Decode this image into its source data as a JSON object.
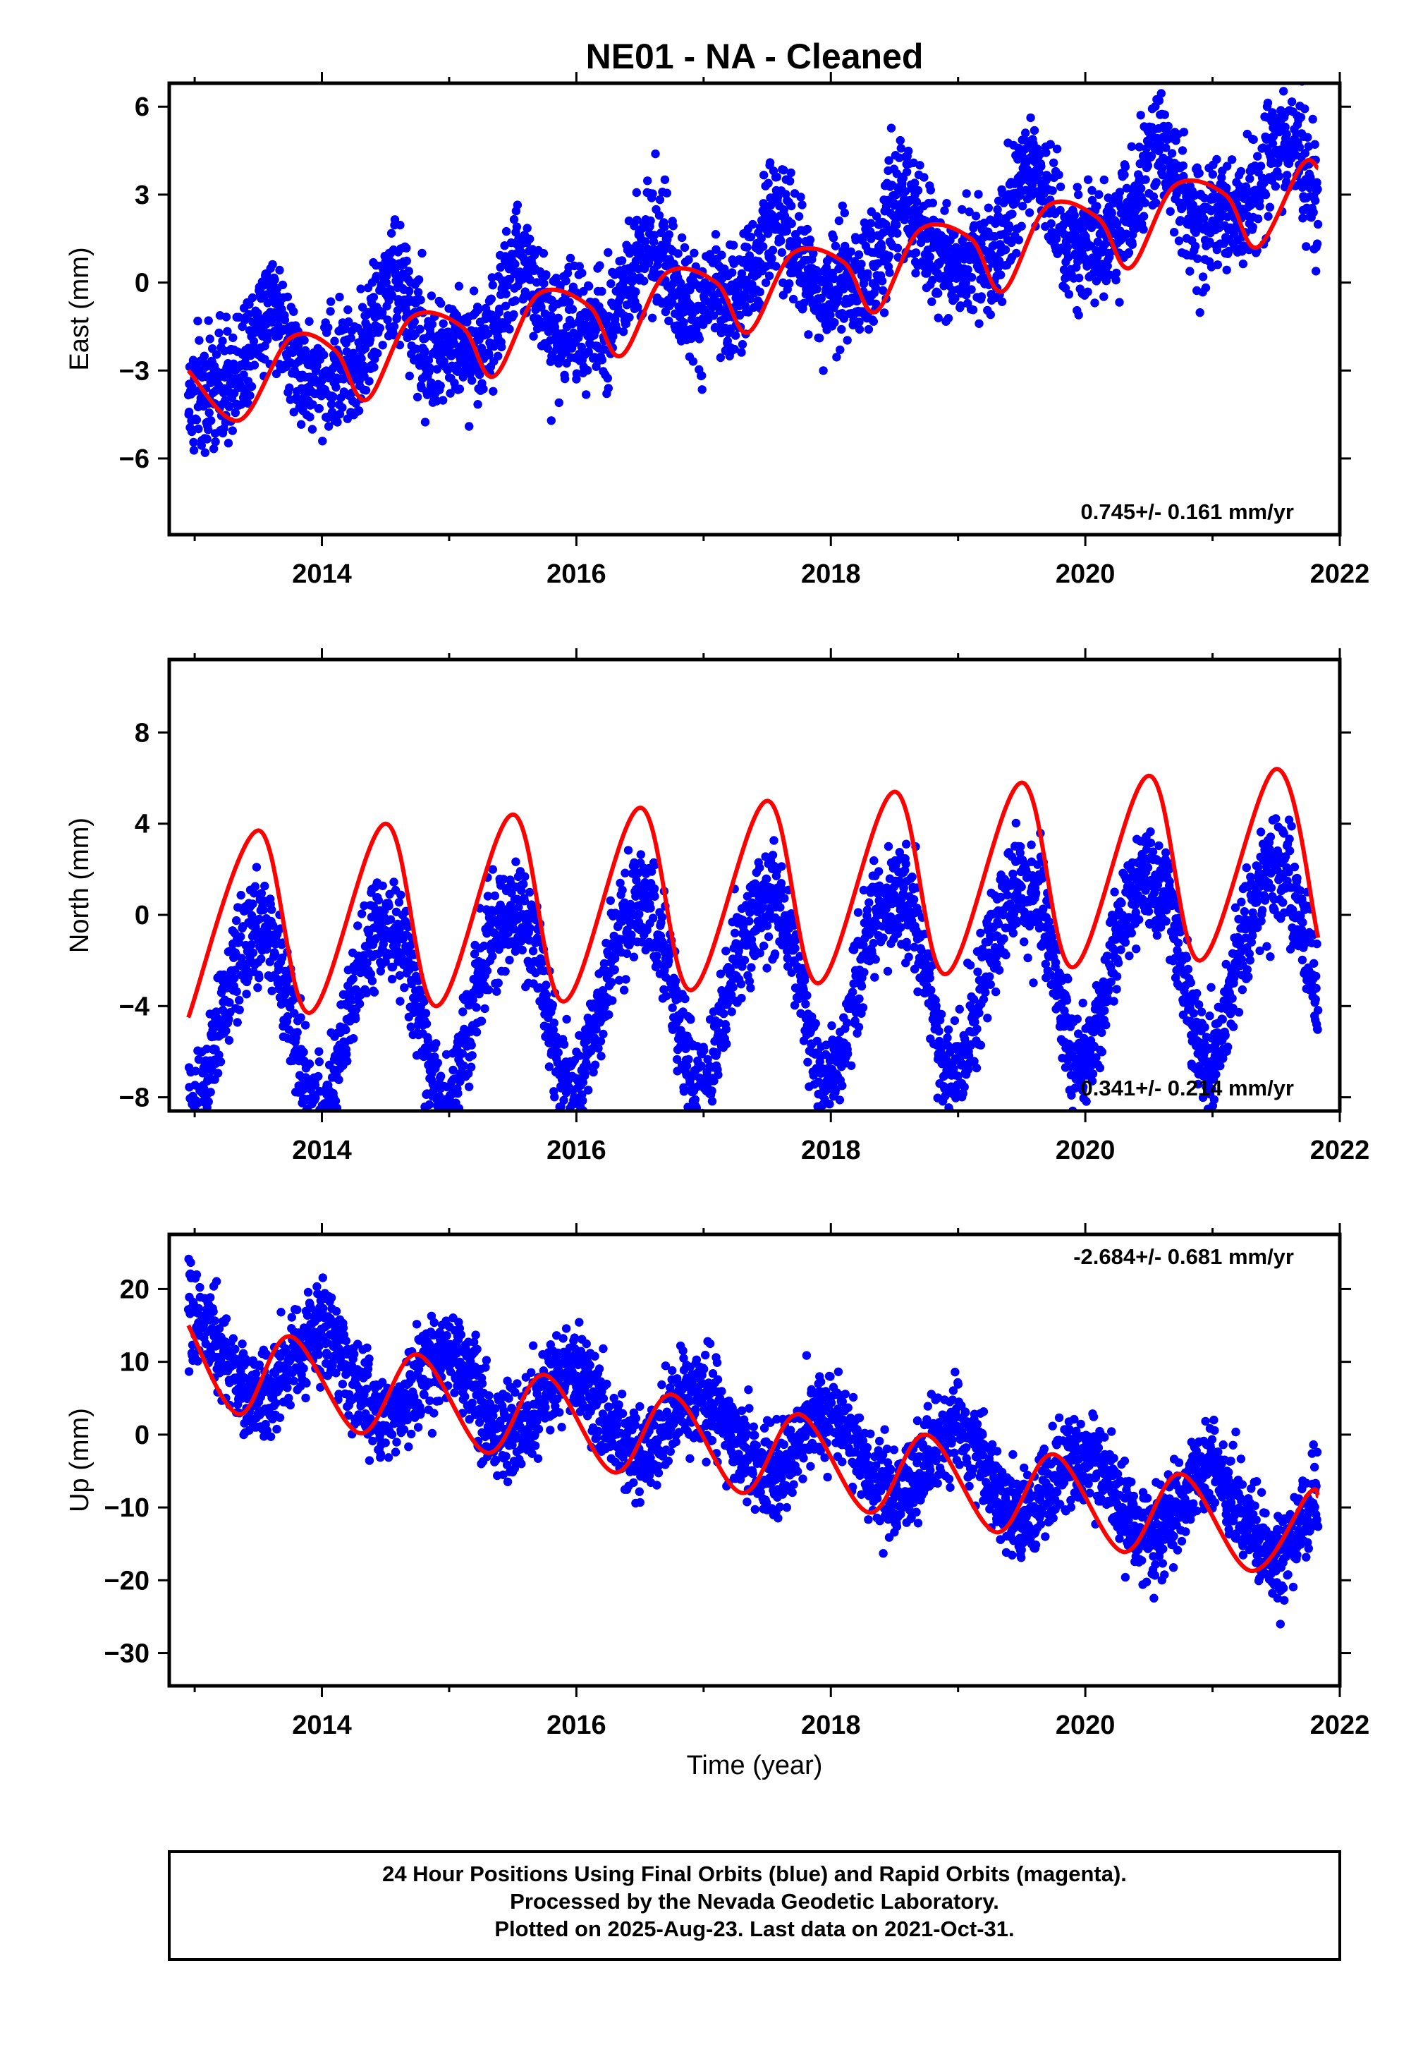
{
  "title": "NE01  - NA - Cleaned",
  "xlabel": "Time (year)",
  "footer": {
    "line1": "24 Hour Positions Using Final Orbits (blue) and Rapid Orbits (magenta).",
    "line2": "Processed by the Nevada Geodetic Laboratory.",
    "line3": "Plotted on 2025-Aug-23. Last data on 2021-Oct-31."
  },
  "colors": {
    "points": "#0000ff",
    "model": "#ff0000",
    "frame": "#000000"
  },
  "chart_data": [
    {
      "type": "scatter",
      "ylabel": "East (mm)",
      "rate_label": "0.745+/- 0.161 mm/yr",
      "xlim": [
        2012.8,
        2022.0
      ],
      "ylim": [
        -8.6,
        6.8
      ],
      "xticks": [
        2014,
        2016,
        2018,
        2020,
        2022
      ],
      "yticks": [
        -6,
        -3,
        0,
        3,
        6
      ],
      "data_range": [
        2012.95,
        2021.83
      ],
      "model": {
        "t0": 2012.95,
        "offset": -3.0,
        "rate": 0.745,
        "annual_sin": -0.8,
        "annual_cos": -1.0,
        "semi_sin": 0.5,
        "semi_cos": 0.0,
        "scatter": 1.1
      },
      "model_points": [
        [
          2012.95,
          -3.0
        ],
        [
          2013.35,
          -4.7
        ],
        [
          2013.75,
          -1.9
        ],
        [
          2014.1,
          -2.3
        ],
        [
          2014.35,
          -4.0
        ],
        [
          2014.7,
          -1.2
        ],
        [
          2015.1,
          -1.5
        ],
        [
          2015.35,
          -3.2
        ],
        [
          2015.7,
          -0.4
        ],
        [
          2016.1,
          -0.8
        ],
        [
          2016.35,
          -2.5
        ],
        [
          2016.7,
          0.3
        ],
        [
          2017.1,
          0.0
        ],
        [
          2017.35,
          -1.7
        ],
        [
          2017.7,
          1.0
        ],
        [
          2018.1,
          0.7
        ],
        [
          2018.35,
          -1.0
        ],
        [
          2018.7,
          1.8
        ],
        [
          2019.1,
          1.5
        ],
        [
          2019.35,
          -0.3
        ],
        [
          2019.7,
          2.6
        ],
        [
          2020.1,
          2.2
        ],
        [
          2020.35,
          0.5
        ],
        [
          2020.7,
          3.3
        ],
        [
          2021.1,
          3.0
        ],
        [
          2021.35,
          1.2
        ],
        [
          2021.7,
          4.0
        ],
        [
          2021.83,
          3.9
        ]
      ]
    },
    {
      "type": "scatter",
      "ylabel": "North (mm)",
      "rate_label": "0.341+/- 0.214 mm/yr",
      "xlim": [
        2012.8,
        2022.0
      ],
      "ylim": [
        -8.6,
        11.2
      ],
      "xticks": [
        2014,
        2016,
        2018,
        2020,
        2022
      ],
      "yticks": [
        -8,
        -4,
        0,
        4,
        8
      ],
      "data_range": [
        2012.95,
        2021.83
      ],
      "model": {
        "t0": 2012.95,
        "offset": -4.5,
        "rate": 0.341,
        "annual_sin": -0.8,
        "annual_cos": -4.0,
        "semi_sin": 0.0,
        "semi_cos": -0.6,
        "scatter": 1.3
      },
      "model_points": [
        [
          2012.95,
          -4.5
        ],
        [
          2013.5,
          3.7
        ],
        [
          2013.9,
          -4.3
        ],
        [
          2014.5,
          4.0
        ],
        [
          2014.9,
          -4.0
        ],
        [
          2015.5,
          4.4
        ],
        [
          2015.9,
          -3.8
        ],
        [
          2016.5,
          4.7
        ],
        [
          2016.9,
          -3.3
        ],
        [
          2017.5,
          5.0
        ],
        [
          2017.9,
          -3.0
        ],
        [
          2018.5,
          5.4
        ],
        [
          2018.9,
          -2.6
        ],
        [
          2019.5,
          5.8
        ],
        [
          2019.9,
          -2.3
        ],
        [
          2020.5,
          6.1
        ],
        [
          2020.9,
          -2.0
        ],
        [
          2021.5,
          6.4
        ],
        [
          2021.83,
          -1.0
        ]
      ]
    },
    {
      "type": "scatter",
      "ylabel": "Up (mm)",
      "rate_label": "-2.684+/- 0.681 mm/yr",
      "xlim": [
        2012.8,
        2022.0
      ],
      "ylim": [
        -34.5,
        27.5
      ],
      "xticks": [
        2014,
        2016,
        2018,
        2020,
        2022
      ],
      "yticks": [
        -30,
        -20,
        -10,
        0,
        10,
        20
      ],
      "data_range": [
        2012.95,
        2021.83
      ],
      "model": {
        "t0": 2012.95,
        "offset": 11.5,
        "rate": -2.684,
        "annual_sin": 1.0,
        "annual_cos": 5.0,
        "semi_sin": 0.0,
        "semi_cos": 0.0,
        "scatter": 3.5
      },
      "model_points": [
        [
          2012.95,
          15.0
        ],
        [
          2013.35,
          2.8
        ],
        [
          2013.75,
          13.5
        ],
        [
          2014.3,
          0.2
        ],
        [
          2014.75,
          11.0
        ],
        [
          2015.3,
          -2.5
        ],
        [
          2015.75,
          8.2
        ],
        [
          2016.3,
          -5.2
        ],
        [
          2016.75,
          5.5
        ],
        [
          2017.3,
          -8.0
        ],
        [
          2017.75,
          2.8
        ],
        [
          2018.3,
          -10.7
        ],
        [
          2018.75,
          0.0
        ],
        [
          2019.3,
          -13.4
        ],
        [
          2019.75,
          -2.7
        ],
        [
          2020.3,
          -16.1
        ],
        [
          2020.75,
          -5.4
        ],
        [
          2021.3,
          -18.7
        ],
        [
          2021.75,
          -8.2
        ],
        [
          2021.83,
          -8.5
        ]
      ]
    }
  ]
}
